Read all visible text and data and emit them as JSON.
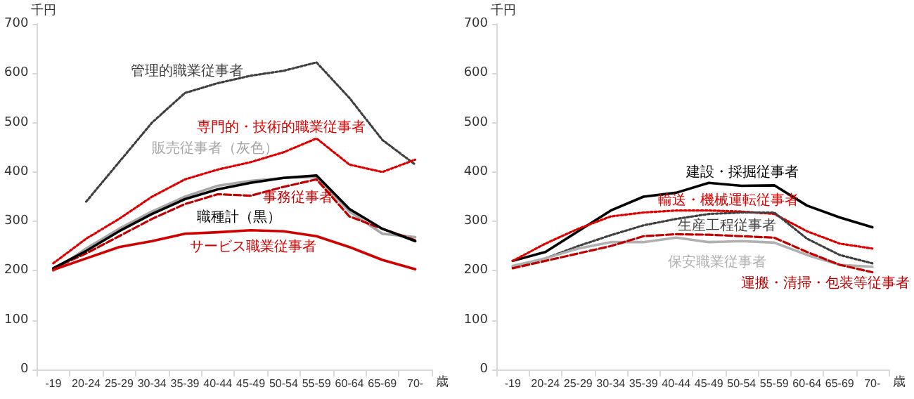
{
  "chart_data": [
    {
      "type": "line",
      "ylabel": "千円",
      "xlabel": "歳",
      "categories": [
        "-19",
        "20-24",
        "25-29",
        "30-34",
        "35-39",
        "40-44",
        "45-49",
        "50-54",
        "55-59",
        "60-64",
        "65-69",
        "70-"
      ],
      "ylim": [
        0,
        700
      ],
      "yticks": [
        0,
        100,
        200,
        300,
        400,
        500,
        600,
        700
      ],
      "grid": false,
      "marker": "none",
      "series": [
        {
          "name": "管理的職業従事者",
          "color": "#404040",
          "line_style": "dotted",
          "values": [
            null,
            340,
            420,
            500,
            560,
            580,
            595,
            605,
            622,
            550,
            465,
            415
          ]
        },
        {
          "name": "専門的・技術的職業従事者",
          "color": "#e00000",
          "line_style": "dotted",
          "values": [
            215,
            265,
            305,
            350,
            385,
            405,
            420,
            440,
            468,
            415,
            400,
            425
          ]
        },
        {
          "name": "販売従事者（灰色）",
          "color": "#a6a6a6",
          "line_style": "solid",
          "values": [
            200,
            245,
            285,
            320,
            350,
            372,
            382,
            388,
            390,
            320,
            275,
            268
          ]
        },
        {
          "name": "事務従事者",
          "color": "#c00000",
          "line_style": "dashed",
          "values": [
            205,
            235,
            270,
            305,
            335,
            355,
            352,
            370,
            385,
            310,
            285,
            262
          ]
        },
        {
          "name": "職種計（黒）",
          "color": "#000000",
          "line_style": "solid",
          "values": [
            205,
            240,
            280,
            315,
            345,
            365,
            378,
            388,
            393,
            325,
            285,
            260
          ]
        },
        {
          "name": "サービス職業従事者",
          "color": "#d00000",
          "line_style": "solid",
          "values": [
            202,
            225,
            248,
            260,
            275,
            278,
            282,
            280,
            270,
            248,
            222,
            203
          ]
        }
      ]
    },
    {
      "type": "line",
      "ylabel": "千円",
      "xlabel": "歳",
      "categories": [
        "-19",
        "20-24",
        "25-29",
        "30-34",
        "35-39",
        "40-44",
        "45-49",
        "50-54",
        "55-59",
        "60-64",
        "65-69",
        "70-"
      ],
      "ylim": [
        0,
        700
      ],
      "yticks": [
        0,
        100,
        200,
        300,
        400,
        500,
        600,
        700
      ],
      "grid": false,
      "marker": "none",
      "series": [
        {
          "name": "建設・採掘従事者",
          "color": "#000000",
          "line_style": "solid",
          "values": [
            220,
            238,
            280,
            322,
            350,
            358,
            378,
            372,
            373,
            332,
            308,
            288
          ]
        },
        {
          "name": "輸送・機械運転従事者",
          "color": "#e00000",
          "line_style": "dotted",
          "values": [
            220,
            255,
            285,
            310,
            318,
            322,
            322,
            320,
            315,
            280,
            255,
            245
          ]
        },
        {
          "name": "生産工程従事者",
          "color": "#404040",
          "line_style": "dotted",
          "values": [
            208,
            225,
            250,
            272,
            292,
            305,
            315,
            318,
            318,
            265,
            232,
            215
          ]
        },
        {
          "name": "保安職業従事者",
          "color": "#b0b0b0",
          "line_style": "solid",
          "values": [
            210,
            225,
            245,
            258,
            258,
            267,
            258,
            260,
            257,
            232,
            212,
            208
          ]
        },
        {
          "name": "運搬・清掃・包装等従事者",
          "color": "#c00000",
          "line_style": "dashed",
          "values": [
            205,
            220,
            235,
            250,
            270,
            274,
            273,
            270,
            267,
            238,
            212,
            197
          ]
        }
      ]
    }
  ]
}
